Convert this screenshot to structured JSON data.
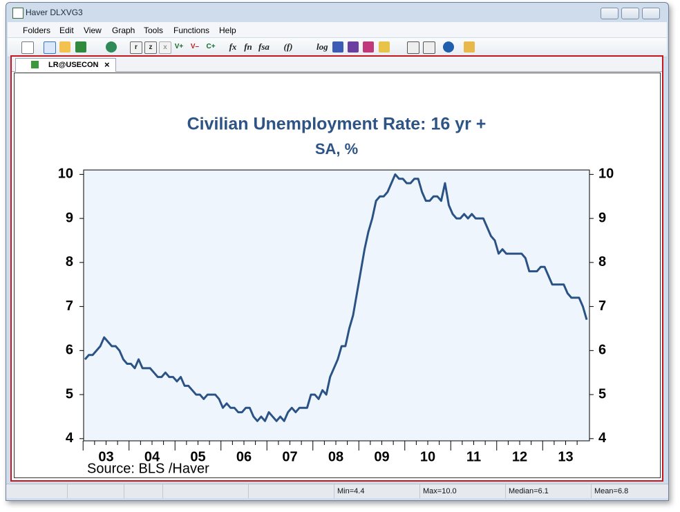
{
  "window": {
    "title": "Haver DLXVG3"
  },
  "menu": [
    "Folders",
    "Edit",
    "View",
    "Graph",
    "Tools",
    "Functions",
    "Help"
  ],
  "toolbar": [
    "r",
    "z",
    "x",
    "V+",
    "V–",
    "C+",
    "fx",
    "fn",
    "fsa",
    "(f)",
    "log"
  ],
  "tab": {
    "label": "LR@USECON"
  },
  "chart_data": {
    "type": "line",
    "title": "Civilian Unemployment Rate: 16 yr +",
    "subtitle": "SA, %",
    "source": "Source:  BLS /Haver",
    "categories": [
      null,
      null,
      null,
      null,
      null,
      null,
      "03",
      null,
      null,
      null,
      null,
      null,
      null,
      null,
      null,
      null,
      null,
      null,
      "04",
      null,
      null,
      null,
      null,
      null,
      null,
      null,
      null,
      null,
      null,
      null,
      "05",
      null,
      null,
      null,
      null,
      null,
      null,
      null,
      null,
      null,
      null,
      null,
      "06",
      null,
      null,
      null,
      null,
      null,
      null,
      null,
      null,
      null,
      null,
      null,
      "07",
      null,
      null,
      null,
      null,
      null,
      null,
      null,
      null,
      null,
      null,
      null,
      "08",
      null,
      null,
      null,
      null,
      null,
      null,
      null,
      null,
      null,
      null,
      null,
      "09",
      null,
      null,
      null,
      null,
      null,
      null,
      null,
      null,
      null,
      null,
      null,
      "10",
      null,
      null,
      null,
      null,
      null,
      null,
      null,
      null,
      null,
      null,
      null,
      "11",
      null,
      null,
      null,
      null,
      null,
      null,
      null,
      null,
      null,
      null,
      null,
      "12",
      null,
      null,
      null,
      null,
      null,
      null,
      null,
      null,
      null,
      null,
      null,
      "13",
      null,
      null,
      null,
      null,
      null
    ],
    "values": [
      5.8,
      5.9,
      5.9,
      6.0,
      6.1,
      6.3,
      6.2,
      6.1,
      6.1,
      6.0,
      5.8,
      5.7,
      5.7,
      5.6,
      5.8,
      5.6,
      5.6,
      5.6,
      5.5,
      5.4,
      5.4,
      5.5,
      5.4,
      5.4,
      5.3,
      5.4,
      5.2,
      5.2,
      5.1,
      5.0,
      5.0,
      4.9,
      5.0,
      5.0,
      5.0,
      4.9,
      4.7,
      4.8,
      4.7,
      4.7,
      4.6,
      4.6,
      4.7,
      4.7,
      4.5,
      4.4,
      4.5,
      4.4,
      4.6,
      4.5,
      4.4,
      4.5,
      4.4,
      4.6,
      4.7,
      4.6,
      4.7,
      4.7,
      4.7,
      5.0,
      5.0,
      4.9,
      5.1,
      5.0,
      5.4,
      5.6,
      5.8,
      6.1,
      6.1,
      6.5,
      6.8,
      7.3,
      7.8,
      8.3,
      8.7,
      9.0,
      9.4,
      9.5,
      9.5,
      9.6,
      9.8,
      10.0,
      9.9,
      9.9,
      9.8,
      9.8,
      9.9,
      9.9,
      9.6,
      9.4,
      9.4,
      9.5,
      9.5,
      9.4,
      9.8,
      9.3,
      9.1,
      9.0,
      9.0,
      9.1,
      9.0,
      9.1,
      9.0,
      9.0,
      9.0,
      8.8,
      8.6,
      8.5,
      8.2,
      8.3,
      8.2,
      8.2,
      8.2,
      8.2,
      8.2,
      8.1,
      7.8,
      7.8,
      7.8,
      7.9,
      7.9,
      7.7,
      7.5,
      7.5,
      7.5,
      7.5,
      7.3,
      7.2,
      7.2,
      7.2,
      7.0,
      6.7
    ],
    "color": "#2b5285",
    "ylim": [
      3.95,
      10.1
    ],
    "yticks": [
      4,
      5,
      6,
      7,
      8,
      9,
      10
    ],
    "y2lim": [
      3.95,
      10.1
    ],
    "y2ticks": [
      4,
      5,
      6,
      7,
      8,
      9,
      10
    ]
  },
  "status_bar": [
    "Min=4.4",
    "Max=10.0",
    "Median=6.1",
    "Mean=6.8"
  ]
}
